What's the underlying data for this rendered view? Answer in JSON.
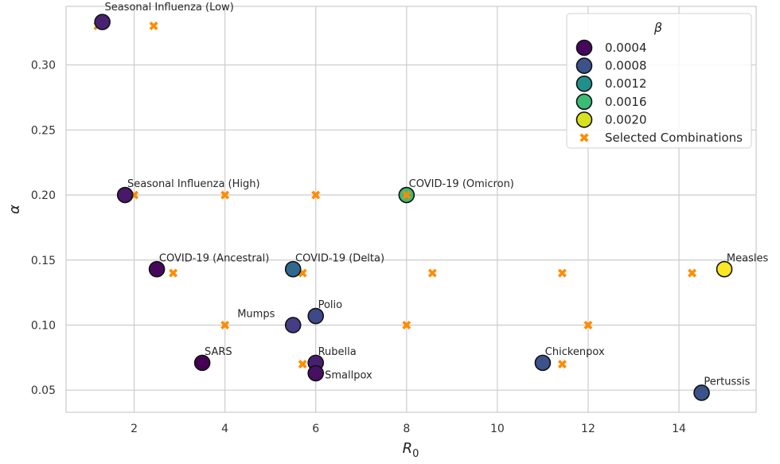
{
  "chart_data": {
    "type": "scatter",
    "title": "",
    "xlabel": "R",
    "xlabel_sub": "0",
    "ylabel": "α",
    "xlim": [
      0.5,
      15.7
    ],
    "ylim": [
      0.033,
      0.345
    ],
    "xticks": [
      2,
      4,
      6,
      8,
      10,
      12,
      14
    ],
    "xtick_labels": [
      "2",
      "4",
      "6",
      "8",
      "10",
      "12",
      "14"
    ],
    "yticks": [
      0.05,
      0.1,
      0.15,
      0.2,
      0.25,
      0.3
    ],
    "ytick_labels": [
      "0.05",
      "0.10",
      "0.15",
      "0.20",
      "0.25",
      "0.30"
    ],
    "grid": true,
    "legend": {
      "title": "β",
      "position": "top-right",
      "items": [
        {
          "label": "0.0004",
          "color": "#46085c",
          "marker": "circle"
        },
        {
          "label": "0.0008",
          "color": "#3b528b",
          "marker": "circle"
        },
        {
          "label": "0.0012",
          "color": "#21908c",
          "marker": "circle"
        },
        {
          "label": "0.0016",
          "color": "#3cbb75",
          "marker": "circle"
        },
        {
          "label": "0.0020",
          "color": "#d6e21e",
          "marker": "circle"
        },
        {
          "label": "Selected Combinations",
          "color": "#ff8c00",
          "marker": "x"
        }
      ]
    },
    "diseases": [
      {
        "name": "Seasonal Influenza (Low)",
        "R0": 1.3,
        "alpha": 0.333,
        "beta": 0.00035,
        "color": "#482173",
        "label_dx": 0.05,
        "label_dy": 0.009,
        "anchor": "start"
      },
      {
        "name": "Seasonal Influenza (High)",
        "R0": 1.8,
        "alpha": 0.2,
        "beta": 0.0003,
        "color": "#48186a",
        "label_dx": 0.05,
        "label_dy": 0.006,
        "anchor": "start"
      },
      {
        "name": "COVID-19 (Ancestral)",
        "R0": 2.5,
        "alpha": 0.143,
        "beta": 0.0003,
        "color": "#46085c",
        "label_dx": 0.05,
        "label_dy": 0.006,
        "anchor": "start"
      },
      {
        "name": "SARS",
        "R0": 3.5,
        "alpha": 0.071,
        "beta": 0.00025,
        "color": "#440154",
        "label_dx": 0.05,
        "label_dy": 0.006,
        "anchor": "start"
      },
      {
        "name": "COVID-19 (Delta)",
        "R0": 5.5,
        "alpha": 0.143,
        "beta": 0.0008,
        "color": "#31688e",
        "label_dx": 0.05,
        "label_dy": 0.006,
        "anchor": "start"
      },
      {
        "name": "Mumps",
        "R0": 5.5,
        "alpha": 0.1,
        "beta": 0.00055,
        "color": "#433e85",
        "label_dx": -0.4,
        "label_dy": 0.006,
        "anchor": "end"
      },
      {
        "name": "Polio",
        "R0": 6.0,
        "alpha": 0.107,
        "beta": 0.0006,
        "color": "#3e4989",
        "label_dx": 0.05,
        "label_dy": 0.006,
        "anchor": "start"
      },
      {
        "name": "Rubella",
        "R0": 6.0,
        "alpha": 0.071,
        "beta": 0.00045,
        "color": "#481f70",
        "label_dx": 0.05,
        "label_dy": 0.006,
        "anchor": "start"
      },
      {
        "name": "Smallpox",
        "R0": 6.0,
        "alpha": 0.063,
        "beta": 0.0004,
        "color": "#471063",
        "label_dx": 0.2,
        "label_dy": -0.004,
        "anchor": "start"
      },
      {
        "name": "COVID-19 (Omicron)",
        "R0": 8.0,
        "alpha": 0.2,
        "beta": 0.0016,
        "color": "#3cbb75",
        "label_dx": 0.05,
        "label_dy": 0.006,
        "anchor": "start"
      },
      {
        "name": "Chickenpox",
        "R0": 11.0,
        "alpha": 0.071,
        "beta": 0.0008,
        "color": "#3b528b",
        "label_dx": 0.05,
        "label_dy": 0.006,
        "anchor": "start"
      },
      {
        "name": "Measles",
        "R0": 15.0,
        "alpha": 0.143,
        "beta": 0.00205,
        "color": "#fde725",
        "label_dx": 0.05,
        "label_dy": 0.006,
        "anchor": "start"
      },
      {
        "name": "Pertussis",
        "R0": 14.5,
        "alpha": 0.048,
        "beta": 0.0008,
        "color": "#3b528b",
        "label_dx": 0.05,
        "label_dy": 0.006,
        "anchor": "start"
      }
    ],
    "selected_combinations": [
      {
        "R0": 1.2,
        "alpha": 0.33
      },
      {
        "R0": 2.43,
        "alpha": 0.33
      },
      {
        "R0": 2.0,
        "alpha": 0.2
      },
      {
        "R0": 4.0,
        "alpha": 0.2
      },
      {
        "R0": 6.0,
        "alpha": 0.2
      },
      {
        "R0": 8.0,
        "alpha": 0.2
      },
      {
        "R0": 2.86,
        "alpha": 0.14
      },
      {
        "R0": 5.71,
        "alpha": 0.14
      },
      {
        "R0": 8.57,
        "alpha": 0.14
      },
      {
        "R0": 11.43,
        "alpha": 0.14
      },
      {
        "R0": 14.29,
        "alpha": 0.14
      },
      {
        "R0": 4.0,
        "alpha": 0.1
      },
      {
        "R0": 8.0,
        "alpha": 0.1
      },
      {
        "R0": 12.0,
        "alpha": 0.1
      },
      {
        "R0": 5.71,
        "alpha": 0.07
      },
      {
        "R0": 11.43,
        "alpha": 0.07
      }
    ]
  }
}
